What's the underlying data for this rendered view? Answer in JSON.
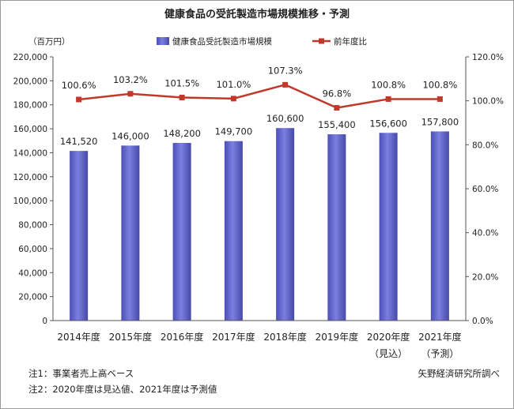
{
  "chart_data": {
    "type": "bar",
    "title": "健康食品の受託製造市場規模推移・予測",
    "left_unit": "（百万円）",
    "categories": [
      "2014年度",
      "2015年度",
      "2016年度",
      "2017年度",
      "2018年度",
      "2019年度",
      "2020年度",
      "2021年度"
    ],
    "category_sublabels": [
      "",
      "",
      "",
      "",
      "",
      "",
      "（見込）",
      "（予測）"
    ],
    "series": [
      {
        "name": "健康食品受託製造市場規模",
        "type": "bar",
        "axis": "left",
        "color": "#7b7fe0",
        "values": [
          141520,
          146000,
          148200,
          149700,
          160600,
          155400,
          156600,
          157800
        ],
        "labels": [
          "141,520",
          "146,000",
          "148,200",
          "149,700",
          "160,600",
          "155,400",
          "156,600",
          "157,800"
        ]
      },
      {
        "name": "前年度比",
        "type": "line",
        "axis": "right",
        "color": "#c0392b",
        "values": [
          100.6,
          103.2,
          101.5,
          101.0,
          107.3,
          96.8,
          100.8,
          100.8
        ],
        "labels": [
          "100.6%",
          "103.2%",
          "101.5%",
          "101.0%",
          "107.3%",
          "96.8%",
          "100.8%",
          "100.8%"
        ]
      }
    ],
    "y_left": {
      "min": 0,
      "max": 220000,
      "step": 20000,
      "ticks": [
        "0",
        "20,000",
        "40,000",
        "60,000",
        "80,000",
        "100,000",
        "120,000",
        "140,000",
        "160,000",
        "180,000",
        "200,000",
        "220,000"
      ]
    },
    "y_right": {
      "min": 0,
      "max": 120,
      "step": 20,
      "ticks": [
        "0.0%",
        "20.0%",
        "40.0%",
        "60.0%",
        "80.0%",
        "100.0%",
        "120.0%"
      ]
    },
    "grid": false,
    "legend_position": "top-center"
  },
  "notes": [
    "注1：事業者売上高ベース",
    "注2：2020年度は見込値、2021年度は予測値"
  ],
  "source": "矢野経済研究所調べ"
}
